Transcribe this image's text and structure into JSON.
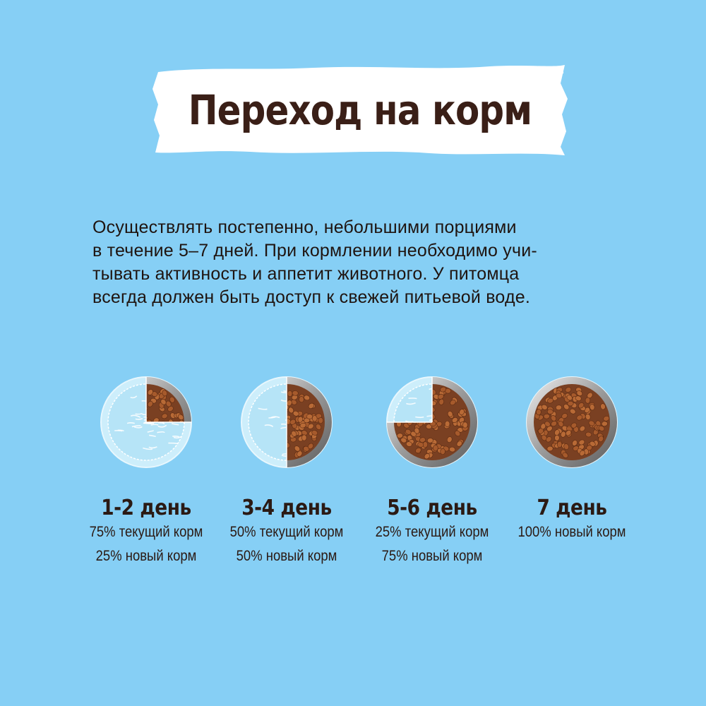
{
  "title": "Переход на корм",
  "intro_lines": [
    "Осуществлять постепенно, небольшими порциями",
    "в течение 5–7 дней. При кормлении необходимо учи-",
    "тывать активность и аппетит животного. У питомца",
    "всегда должен быть доступ к свежей питьевой воде."
  ],
  "steps": [
    {
      "day": "1-2 день",
      "lines": [
        "75% текущий корм",
        "25% новый корм"
      ],
      "new_share": 0.25
    },
    {
      "day": "3-4 день",
      "lines": [
        "50% текущий корм",
        "50% новый корм"
      ],
      "new_share": 0.5
    },
    {
      "day": "5-6 день",
      "lines": [
        "25% текущий корм",
        "75% новый корм"
      ],
      "new_share": 0.75
    },
    {
      "day": "7 день",
      "lines": [
        "100% новый корм"
      ],
      "new_share": 1.0
    }
  ],
  "colors": {
    "background": "#86cff5",
    "title_text": "#3a1f17",
    "kibble": "#a65a2c",
    "current_food": "#cdeefb"
  }
}
